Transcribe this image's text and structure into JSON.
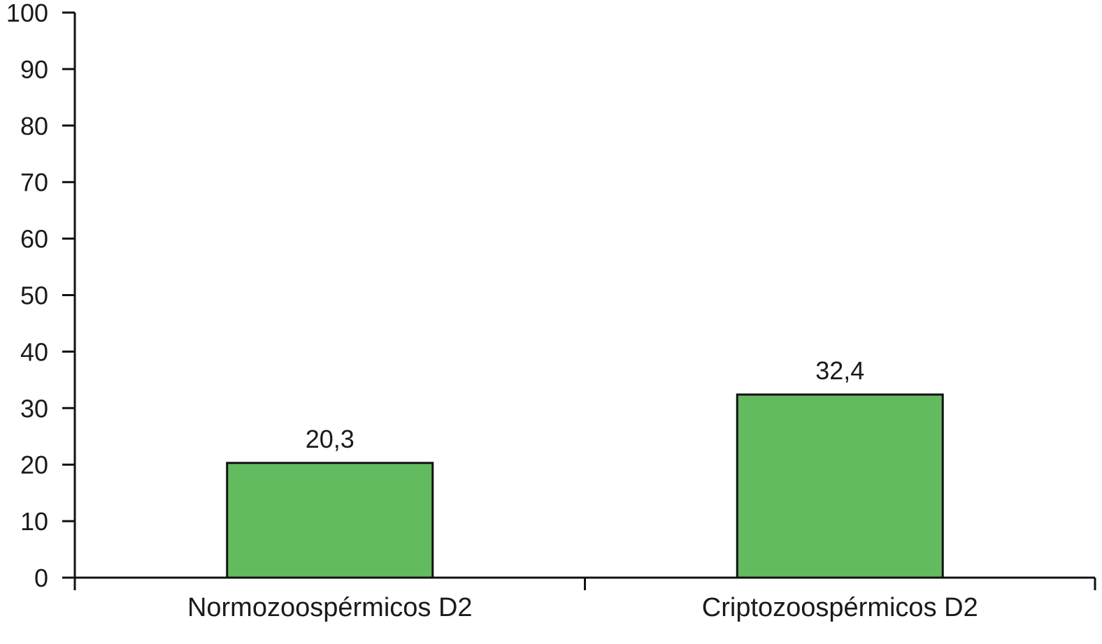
{
  "chart_data": {
    "type": "bar",
    "categories": [
      "Normozoospérmicos D2",
      "Criptozoospérmicos D2"
    ],
    "values": [
      20.3,
      32.4
    ],
    "data_labels": [
      "20,3",
      "32,4"
    ],
    "ylim": [
      0,
      100
    ],
    "yticks": [
      0,
      10,
      20,
      30,
      40,
      50,
      60,
      70,
      80,
      90,
      100
    ],
    "xlabel": "",
    "ylabel": "",
    "title": "",
    "grid": false,
    "legend": "none",
    "colors": {
      "bar_fill": "#62bb5f",
      "bar_stroke": "#111111",
      "axis": "#111111"
    }
  }
}
